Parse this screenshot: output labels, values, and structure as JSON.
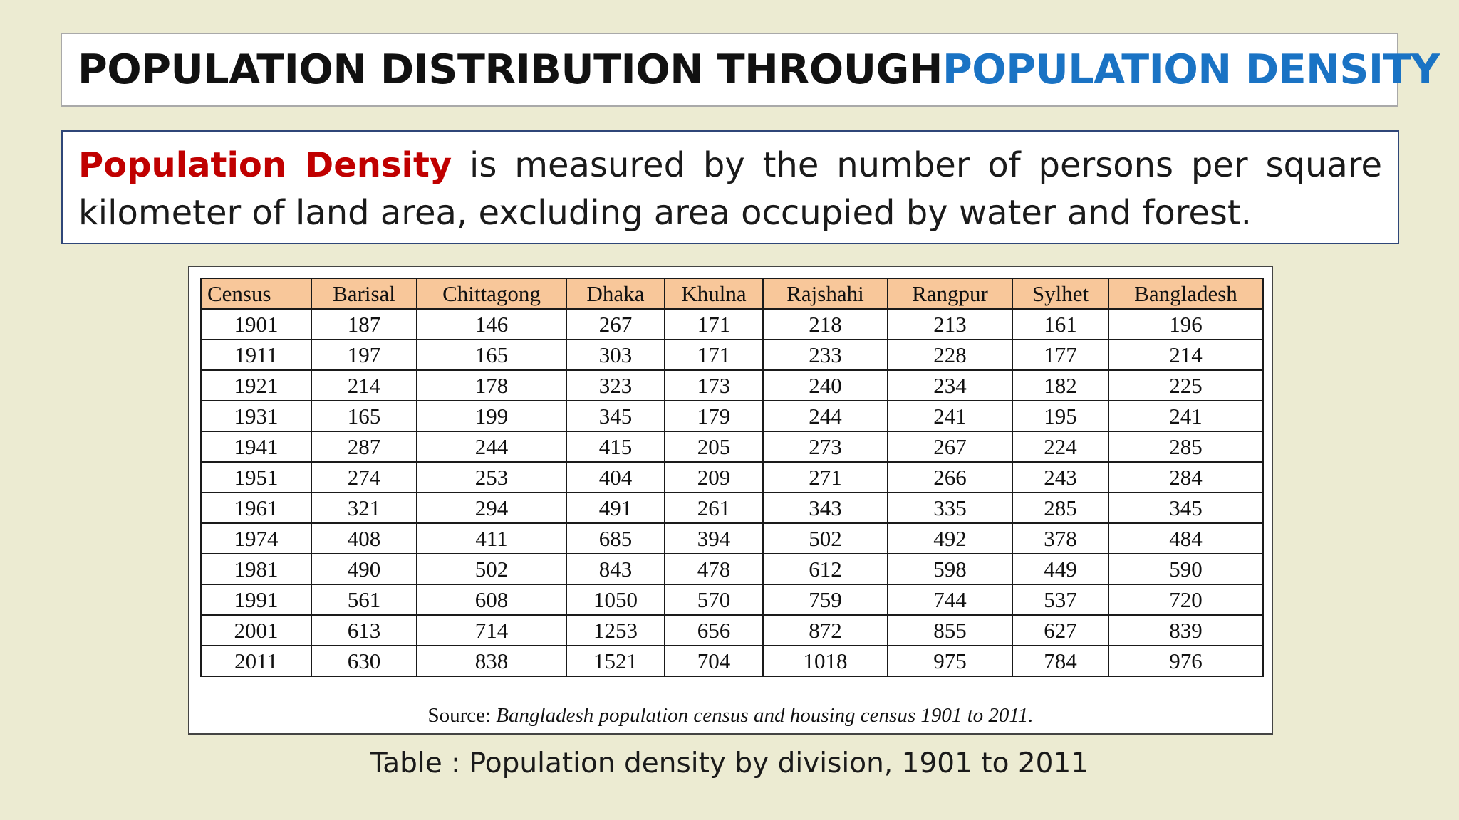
{
  "title": {
    "part1": "POPULATION DISTRIBUTION THROUGH ",
    "part2": "POPULATION DENSITY",
    "accent_color": "#1a73c4"
  },
  "definition": {
    "term": "Population Density",
    "text": " is measured by the number of persons per square kilometer of land area, excluding area occupied by water and forest.",
    "term_color": "#c00000"
  },
  "table": {
    "columns": [
      "Census",
      "Barisal",
      "Chittagong",
      "Dhaka",
      "Khulna",
      "Rajshahi",
      "Rangpur",
      "Sylhet",
      "Bangladesh"
    ],
    "rows": [
      [
        "1901",
        "187",
        "146",
        "267",
        "171",
        "218",
        "213",
        "161",
        "196"
      ],
      [
        "1911",
        "197",
        "165",
        "303",
        "171",
        "233",
        "228",
        "177",
        "214"
      ],
      [
        "1921",
        "214",
        "178",
        "323",
        "173",
        "240",
        "234",
        "182",
        "225"
      ],
      [
        "1931",
        "165",
        "199",
        "345",
        "179",
        "244",
        "241",
        "195",
        "241"
      ],
      [
        "1941",
        "287",
        "244",
        "415",
        "205",
        "273",
        "267",
        "224",
        "285"
      ],
      [
        "1951",
        "274",
        "253",
        "404",
        "209",
        "271",
        "266",
        "243",
        "284"
      ],
      [
        "1961",
        "321",
        "294",
        "491",
        "261",
        "343",
        "335",
        "285",
        "345"
      ],
      [
        "1974",
        "408",
        "411",
        "685",
        "394",
        "502",
        "492",
        "378",
        "484"
      ],
      [
        "1981",
        "490",
        "502",
        "843",
        "478",
        "612",
        "598",
        "449",
        "590"
      ],
      [
        "1991",
        "561",
        "608",
        "1050",
        "570",
        "759",
        "744",
        "537",
        "720"
      ],
      [
        "2001",
        "613",
        "714",
        "1253",
        "656",
        "872",
        "855",
        "627",
        "839"
      ],
      [
        "2011",
        "630",
        "838",
        "1521",
        "704",
        "1018",
        "975",
        "784",
        "976"
      ]
    ],
    "header_color": "#f8c79a",
    "source_label": "Source: ",
    "source_text": "Bangladesh population census and housing census 1901 to 2011."
  },
  "caption": "Table : Population density by division, 1901 to 2011"
}
